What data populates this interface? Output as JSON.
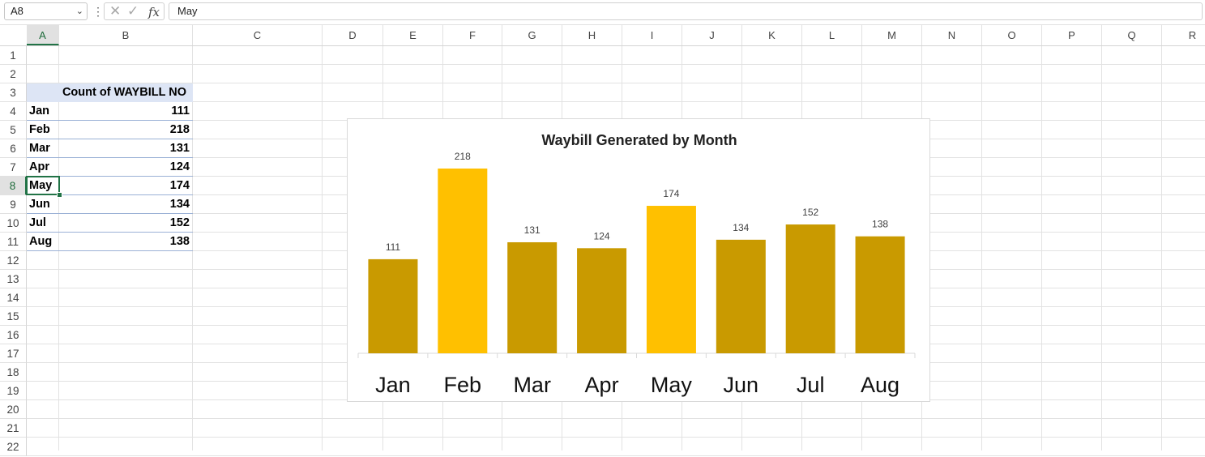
{
  "formula_bar": {
    "name_box": "A8",
    "formula_value": "May",
    "fx_label": "fx",
    "cancel_glyph": "✕",
    "enter_glyph": "✓",
    "dots_glyph": "⋮",
    "arrow_glyph": "⌄"
  },
  "grid": {
    "columns": [
      "A",
      "B",
      "C",
      "D",
      "E",
      "F",
      "G",
      "H",
      "I",
      "J",
      "K",
      "L",
      "M",
      "N",
      "O",
      "P",
      "Q",
      "R"
    ],
    "rows": [
      "1",
      "2",
      "3",
      "4",
      "5",
      "6",
      "7",
      "8",
      "9",
      "10",
      "11",
      "12",
      "13",
      "14",
      "15",
      "16",
      "17",
      "18",
      "19",
      "20",
      "21",
      "22"
    ],
    "selected_column": "A",
    "selected_row": "8"
  },
  "pivot": {
    "header": "Count of WAYBILL NO",
    "rows": [
      {
        "label": "Jan",
        "value": "111"
      },
      {
        "label": "Feb",
        "value": "218"
      },
      {
        "label": "Mar",
        "value": "131"
      },
      {
        "label": "Apr",
        "value": "124"
      },
      {
        "label": "May",
        "value": "174"
      },
      {
        "label": "Jun",
        "value": "134"
      },
      {
        "label": "Jul",
        "value": "152"
      },
      {
        "label": "Aug",
        "value": "138"
      }
    ]
  },
  "chart_data": {
    "type": "bar",
    "title": "Waybill Generated by Month",
    "categories": [
      "Jan",
      "Feb",
      "Mar",
      "Apr",
      "May",
      "Jun",
      "Jul",
      "Aug"
    ],
    "values": [
      111,
      218,
      131,
      124,
      174,
      134,
      152,
      138
    ],
    "highlighted": [
      "Feb",
      "May"
    ],
    "ylim": [
      0,
      240
    ],
    "grid": false,
    "legend": "none",
    "colors": {
      "base": "#C99A00",
      "highlight": "#FFC000"
    }
  }
}
